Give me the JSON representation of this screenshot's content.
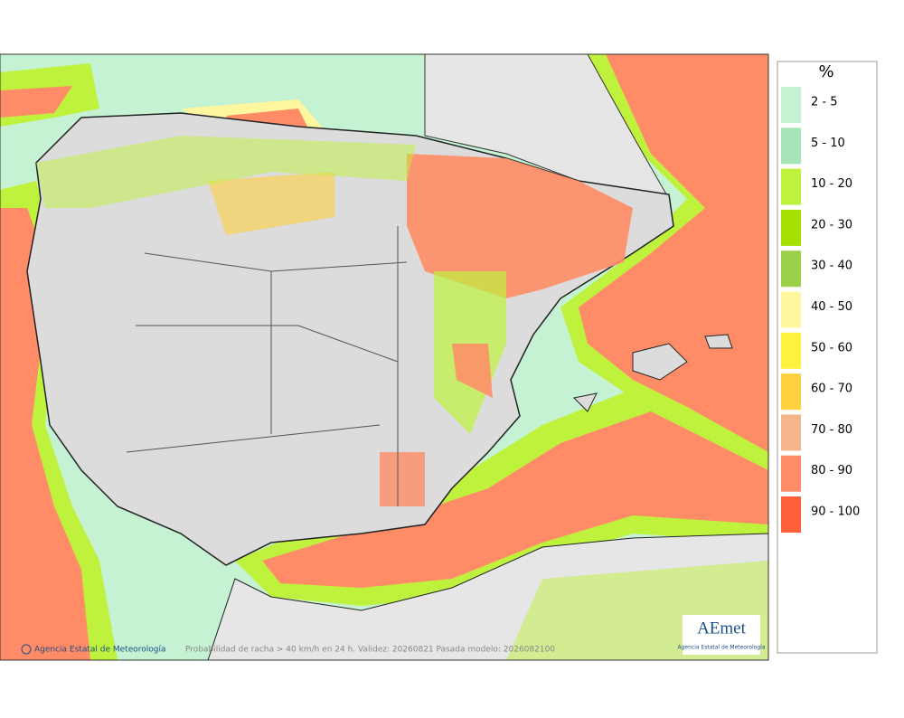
{
  "legend": {
    "title": "%",
    "items": [
      {
        "label": "2 - 5",
        "color": "#c4f2d2"
      },
      {
        "label": "5 - 10",
        "color": "#a6e4b8"
      },
      {
        "label": "10 - 20",
        "color": "#bff23c"
      },
      {
        "label": "20 - 30",
        "color": "#a4e000"
      },
      {
        "label": "30 - 40",
        "color": "#9ccf4a"
      },
      {
        "label": "40 - 50",
        "color": "#fff7a0"
      },
      {
        "label": "50 - 60",
        "color": "#fff23c"
      },
      {
        "label": "60 - 70",
        "color": "#ffd040"
      },
      {
        "label": "70 - 80",
        "color": "#f6b48a"
      },
      {
        "label": "80 - 90",
        "color": "#ff8c66"
      },
      {
        "label": "90 - 100",
        "color": "#ff603a"
      }
    ]
  },
  "footer": {
    "credit": "Agencia Estatal de Meteorología",
    "caption": "Probabilidad de racha > 40 km/h en 24 h. Validez: 20260821 Pasada modelo: 2026082100"
  },
  "logo": {
    "name": "AEmet",
    "subtitle": "Agencia Estatal de Meteorología"
  }
}
